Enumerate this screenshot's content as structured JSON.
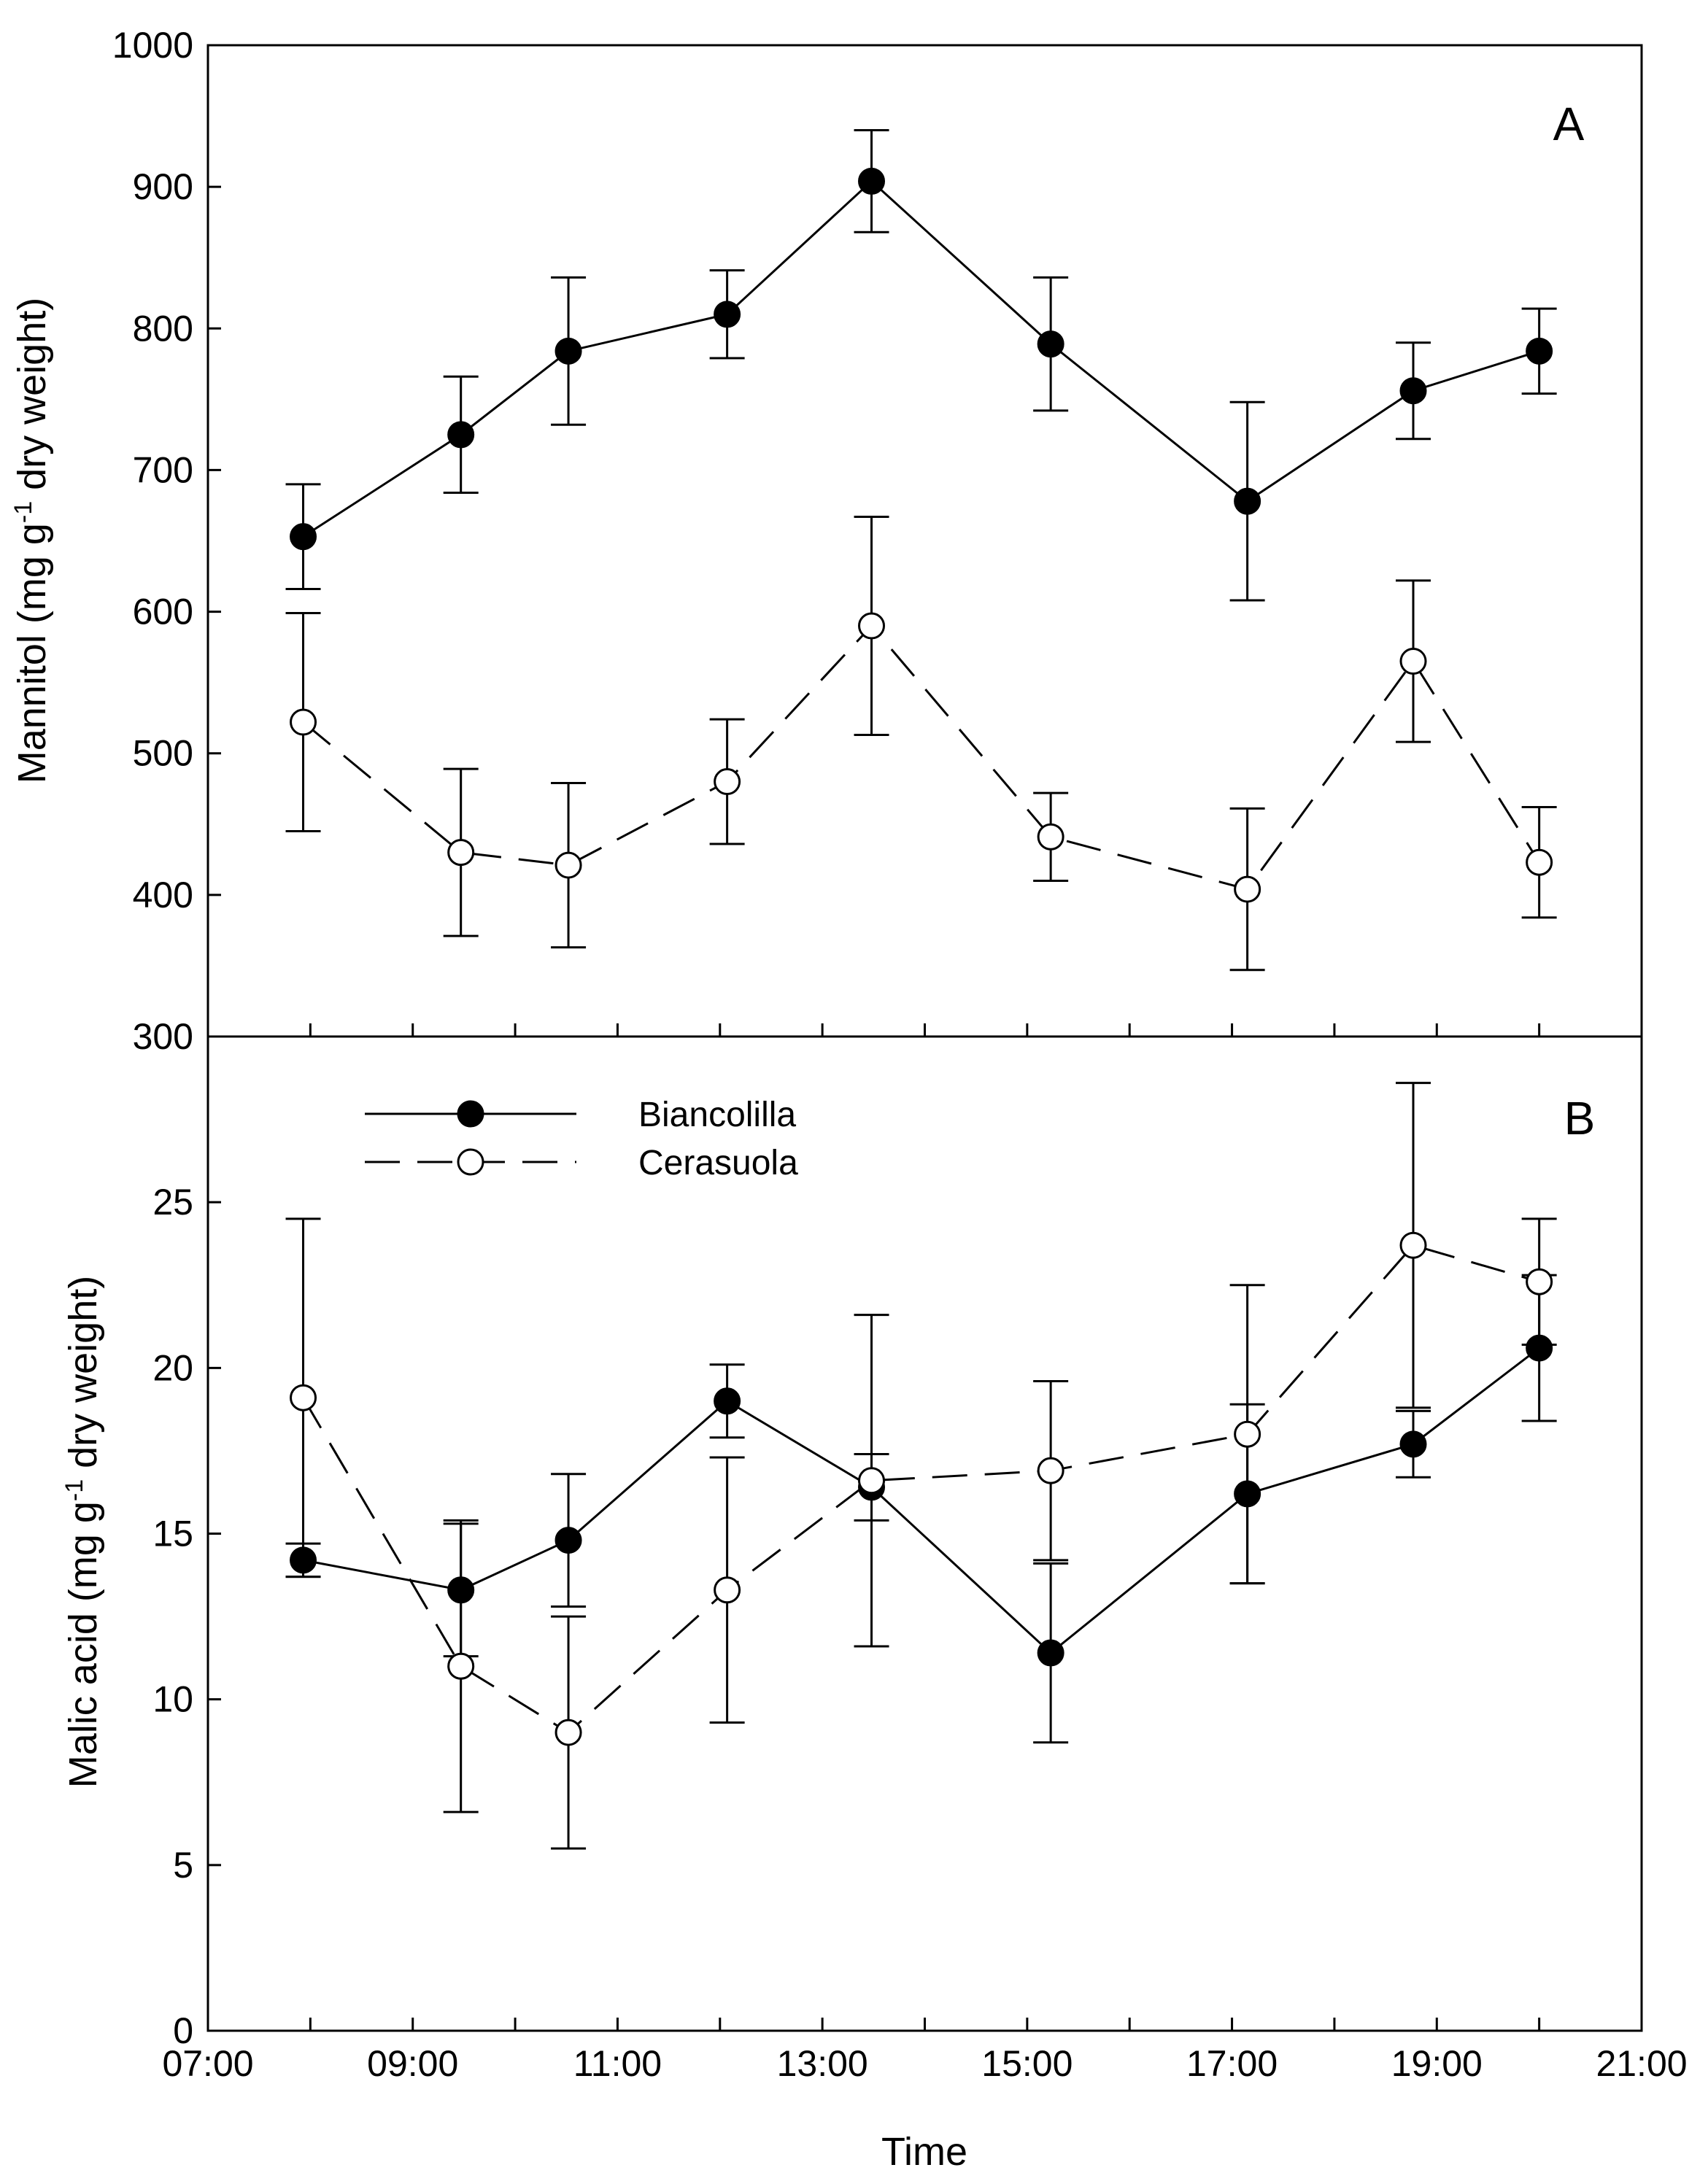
{
  "chart_data": [
    {
      "panel": "A",
      "type": "line",
      "ylabel": "Mannitol (mg g-1 dry weight)",
      "ylabel_parts": {
        "pre": "Mannitol (mg g",
        "sup": "-1",
        "post": " dry weight)"
      },
      "ylim": [
        300,
        1000
      ],
      "yticks": [
        300,
        400,
        500,
        600,
        700,
        800,
        900,
        1000
      ],
      "series": [
        {
          "name": "Biancolilla",
          "style": "solid",
          "marker": "filled-circle",
          "x": [
            7.93,
            9.47,
            10.52,
            12.07,
            13.48,
            15.23,
            17.15,
            18.77,
            20.0
          ],
          "y": [
            653,
            725,
            784,
            810,
            904,
            789,
            678,
            756,
            784
          ],
          "err": [
            37,
            41,
            52,
            31,
            36,
            47,
            70,
            34,
            30
          ]
        },
        {
          "name": "Cerasuola",
          "style": "dashed",
          "marker": "open-circle",
          "x": [
            7.93,
            9.47,
            10.52,
            12.07,
            13.48,
            15.23,
            17.15,
            18.77,
            20.0
          ],
          "y": [
            522,
            430,
            421,
            480,
            590,
            441,
            404,
            565,
            423
          ],
          "err": [
            77,
            59,
            58,
            44,
            77,
            31,
            57,
            57,
            39
          ]
        }
      ]
    },
    {
      "panel": "B",
      "type": "line",
      "xlabel": "Time",
      "ylabel": "Malic acid (mg g-1 dry weight)",
      "ylabel_parts": {
        "pre": "Malic acid (mg g",
        "sup": "-1",
        "post": " dry weight)"
      },
      "ylim": [
        0,
        30
      ],
      "yticks": [
        0,
        5,
        10,
        15,
        20,
        25
      ],
      "xlim": [
        7,
        21
      ],
      "xticks": [
        7,
        9,
        11,
        13,
        15,
        17,
        19,
        21
      ],
      "xtick_labels": [
        "07:00",
        "09:00",
        "11:00",
        "13:00",
        "15:00",
        "17:00",
        "19:00",
        "21:00"
      ],
      "series": [
        {
          "name": "Biancolilla",
          "style": "solid",
          "marker": "filled-circle",
          "x": [
            7.93,
            9.47,
            10.52,
            12.07,
            13.48,
            15.23,
            17.15,
            18.77,
            20.0
          ],
          "y": [
            14.2,
            13.3,
            14.8,
            19.0,
            16.4,
            11.4,
            16.2,
            17.7,
            20.6
          ],
          "err": [
            0.5,
            2.0,
            2.0,
            1.1,
            1.0,
            2.7,
            2.7,
            1.0,
            2.2
          ]
        },
        {
          "name": "Cerasuola",
          "style": "dashed",
          "marker": "open-circle",
          "x": [
            7.93,
            9.47,
            10.52,
            12.07,
            13.48,
            15.23,
            17.15,
            18.77,
            20.0
          ],
          "y": [
            19.1,
            11.0,
            9.0,
            13.3,
            16.6,
            16.9,
            18.0,
            23.7,
            22.6
          ],
          "err": [
            5.4,
            4.4,
            3.5,
            4.0,
            5.0,
            2.7,
            4.5,
            4.9,
            1.9
          ]
        }
      ],
      "legend": {
        "placement": "top-left",
        "entries": [
          {
            "label": "Biancolilla",
            "marker": "filled-circle",
            "style": "solid"
          },
          {
            "label": "Cerasuola",
            "marker": "open-circle",
            "style": "dashed"
          }
        ]
      }
    }
  ]
}
